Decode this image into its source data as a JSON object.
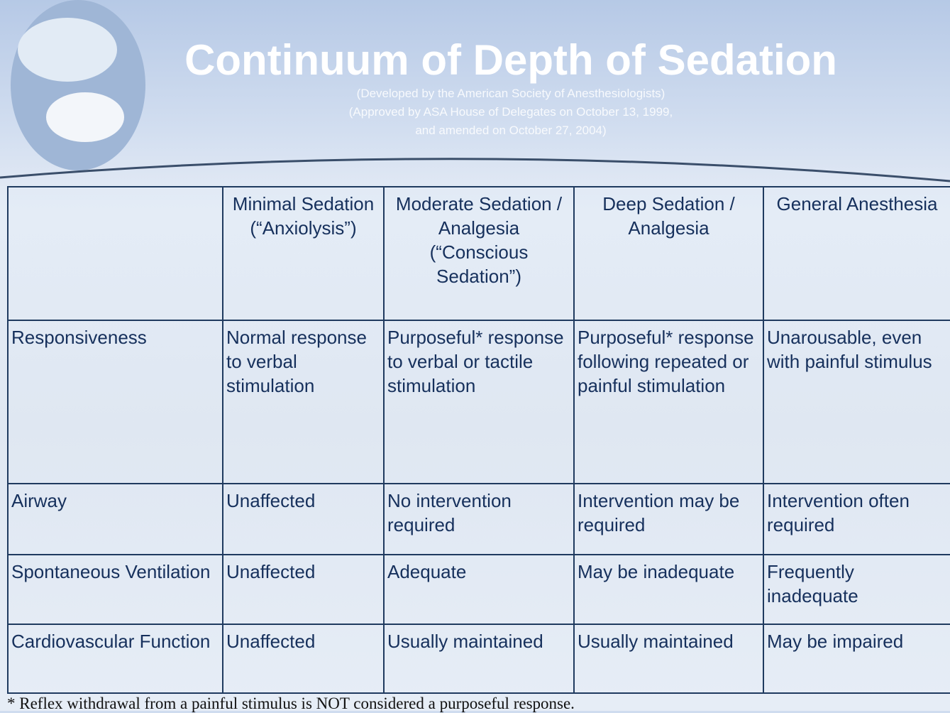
{
  "header": {
    "title": "Continuum of Depth of Sedation",
    "subtitle": [
      "(Developed by the American Society of Anesthesiologists)",
      "(Approved by ASA House of Delegates on October 13, 1999,",
      "and amended on October 27, 2004)"
    ]
  },
  "table": {
    "columns": [
      "Minimal Sedation (“Anxiolysis”)",
      "Moderate Sedation / Analgesia (“Conscious Sedation”)",
      "Deep Sedation / Analgesia",
      "General Anesthesia"
    ],
    "rows": [
      [
        "Responsiveness",
        "Normal response to verbal stimulation",
        "Purposeful* response to verbal or tactile stimulation",
        "Purposeful* response following repeated or painful stimulation",
        "Unarousable, even with painful stimulus"
      ],
      [
        "Airway",
        "Unaffected",
        "No intervention required",
        "Intervention may be required",
        "Intervention often required"
      ],
      [
        "Spontaneous Ventilation",
        "Unaffected",
        "Adequate",
        "May be inadequate",
        "Frequently inadequate"
      ],
      [
        "Cardiovascular Function",
        "Unaffected",
        "Usually maintained",
        "Usually maintained",
        "May be impaired"
      ]
    ]
  },
  "footnote": "* Reflex withdrawal from a painful stimulus is NOT considered a purposeful response."
}
